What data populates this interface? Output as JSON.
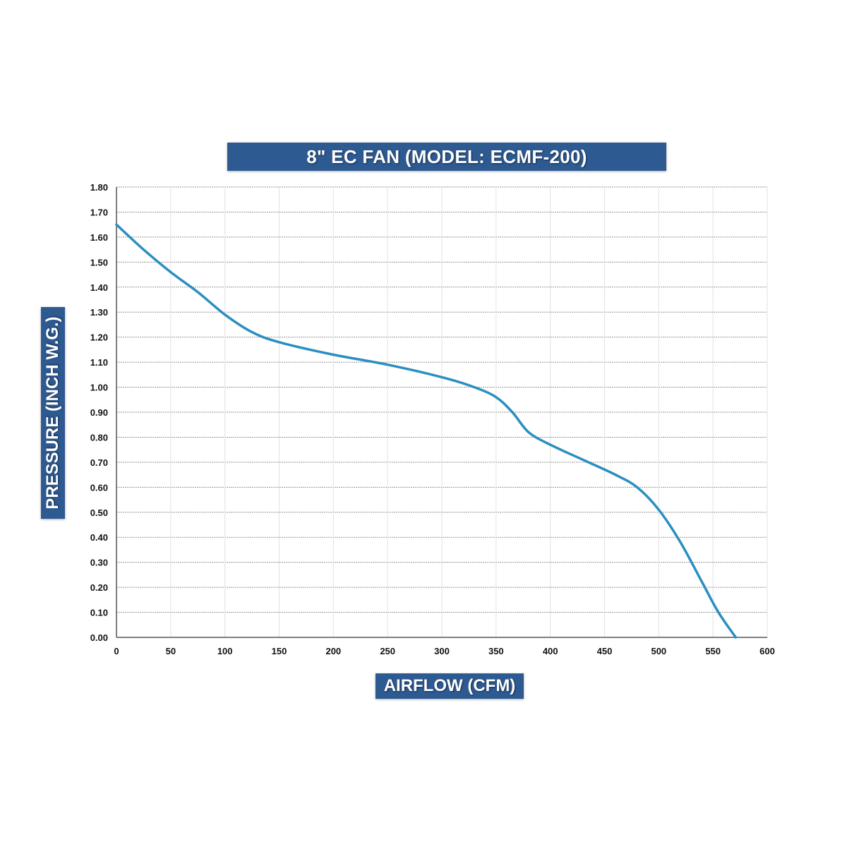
{
  "chart_data": {
    "type": "line",
    "title": "8\" EC FAN (MODEL: ECMF-200)",
    "xlabel": "AIRFLOW (CFM)",
    "ylabel": "PRESSURE (INCH W.G.)",
    "xlim": [
      0,
      600
    ],
    "ylim": [
      0,
      1.8
    ],
    "xticks": [
      "0",
      "50",
      "100",
      "150",
      "200",
      "250",
      "300",
      "350",
      "400",
      "450",
      "500",
      "550",
      "600"
    ],
    "yticks": [
      "0.00",
      "0.10",
      "0.20",
      "0.30",
      "0.40",
      "0.50",
      "0.60",
      "0.70",
      "0.80",
      "0.90",
      "1.00",
      "1.10",
      "1.20",
      "1.30",
      "1.40",
      "1.50",
      "1.60",
      "1.70",
      "1.80"
    ],
    "grid": true,
    "series": [
      {
        "color": "#2a8fc0",
        "x": [
          0,
          25,
          50,
          75,
          100,
          125,
          150,
          200,
          250,
          300,
          330,
          350,
          365,
          380,
          400,
          430,
          460,
          480,
          500,
          520,
          540,
          555,
          571
        ],
        "y": [
          1.65,
          1.55,
          1.46,
          1.38,
          1.29,
          1.22,
          1.18,
          1.13,
          1.09,
          1.04,
          1.0,
          0.96,
          0.9,
          0.82,
          0.77,
          0.71,
          0.65,
          0.6,
          0.51,
          0.38,
          0.22,
          0.1,
          0.0
        ]
      }
    ]
  }
}
